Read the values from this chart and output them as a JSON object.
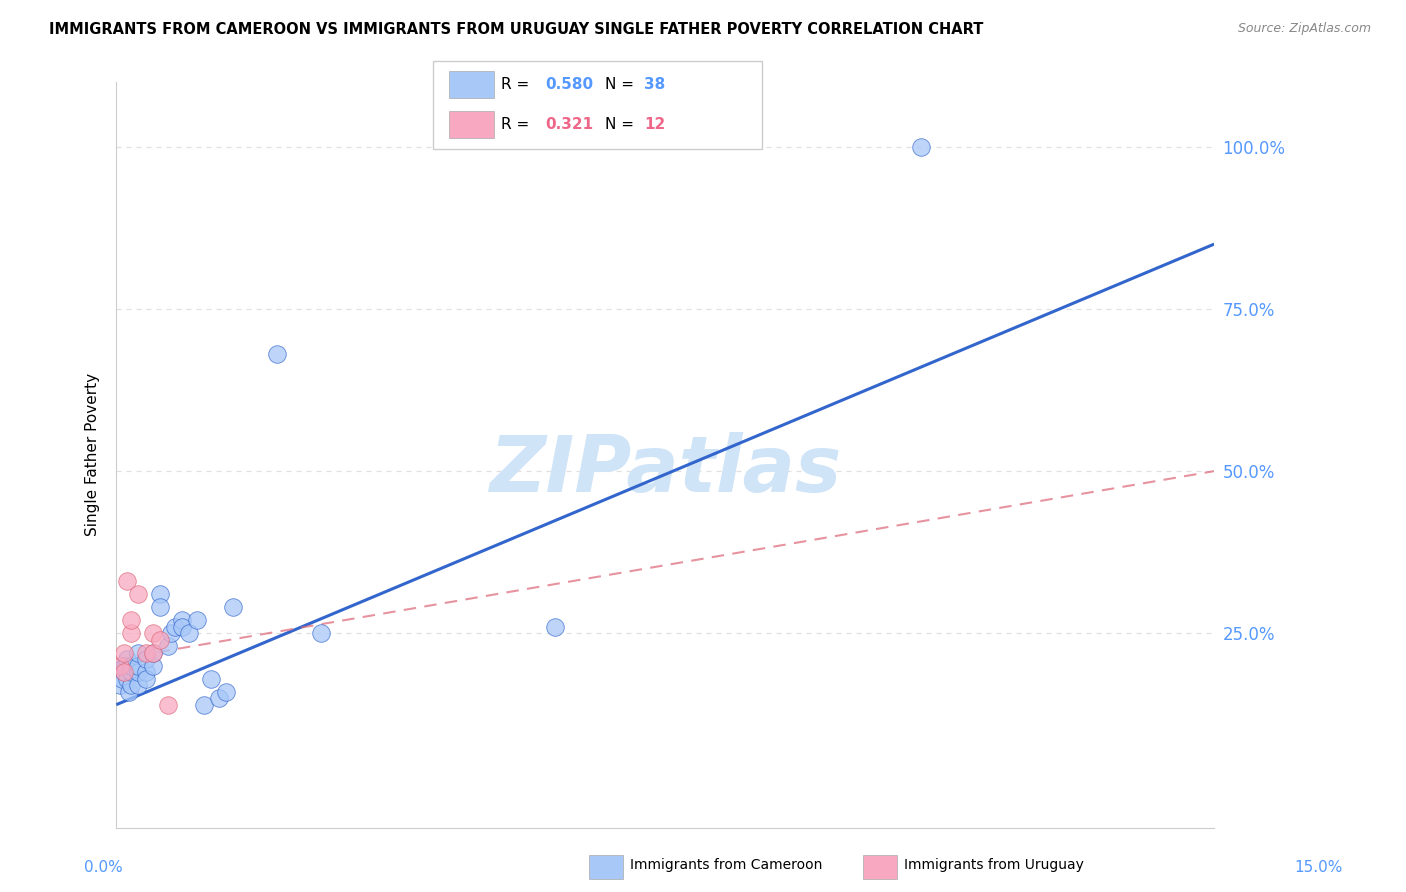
{
  "title": "IMMIGRANTS FROM CAMEROON VS IMMIGRANTS FROM URUGUAY SINGLE FATHER POVERTY CORRELATION CHART",
  "source": "Source: ZipAtlas.com",
  "ylabel": "Single Father Poverty",
  "xlim": [
    0.0,
    0.15
  ],
  "ylim": [
    -0.05,
    1.1
  ],
  "plot_ylim": [
    0.0,
    1.0
  ],
  "cameroon_R": 0.58,
  "cameroon_N": 38,
  "uruguay_R": 0.321,
  "uruguay_N": 12,
  "cameroon_color": "#a8c8f8",
  "uruguay_color": "#f8a8c0",
  "trendline_cameroon_color": "#3366cc",
  "trendline_uruguay_color": "#dd6677",
  "watermark_color": "#d0e4f8",
  "grid_color": "#e0e0e0",
  "right_tick_color": "#5599ff",
  "cameroon_x": [
    0.0005,
    0.0008,
    0.001,
    0.001,
    0.0012,
    0.0015,
    0.0015,
    0.0018,
    0.002,
    0.002,
    0.002,
    0.003,
    0.003,
    0.003,
    0.003,
    0.004,
    0.004,
    0.004,
    0.005,
    0.005,
    0.006,
    0.006,
    0.007,
    0.0075,
    0.008,
    0.009,
    0.009,
    0.01,
    0.011,
    0.012,
    0.013,
    0.014,
    0.015,
    0.016,
    0.022,
    0.028,
    0.06,
    0.11
  ],
  "cameroon_y": [
    0.17,
    0.18,
    0.19,
    0.2,
    0.2,
    0.18,
    0.21,
    0.16,
    0.17,
    0.19,
    0.2,
    0.17,
    0.19,
    0.2,
    0.22,
    0.19,
    0.21,
    0.18,
    0.2,
    0.22,
    0.31,
    0.29,
    0.23,
    0.25,
    0.26,
    0.27,
    0.26,
    0.25,
    0.27,
    0.14,
    0.18,
    0.15,
    0.16,
    0.29,
    0.68,
    0.25,
    0.26,
    1.0
  ],
  "cameroon_outlier_x": [
    0.022
  ],
  "cameroon_outlier_y": [
    0.68
  ],
  "uruguay_x": [
    0.0005,
    0.001,
    0.001,
    0.0015,
    0.002,
    0.002,
    0.003,
    0.004,
    0.005,
    0.005,
    0.006,
    0.007
  ],
  "uruguay_y": [
    0.2,
    0.19,
    0.22,
    0.33,
    0.25,
    0.27,
    0.31,
    0.22,
    0.25,
    0.22,
    0.24,
    0.14
  ],
  "cam_trend_x0": 0.0,
  "cam_trend_y0": 0.14,
  "cam_trend_x1": 0.15,
  "cam_trend_y1": 0.85,
  "uru_trend_x0": 0.0,
  "uru_trend_y0": 0.21,
  "uru_trend_x1": 0.15,
  "uru_trend_y1": 0.5
}
